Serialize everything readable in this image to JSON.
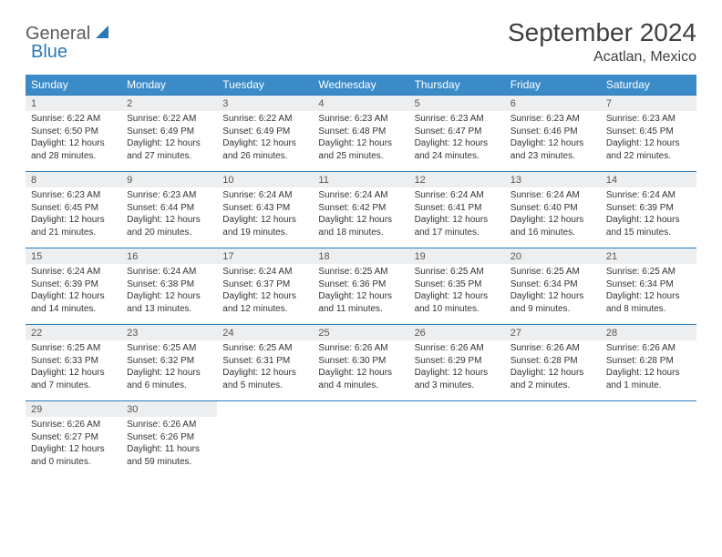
{
  "logo": {
    "general": "General",
    "blue": "Blue"
  },
  "title": "September 2024",
  "location": "Acatlan, Mexico",
  "colors": {
    "header_bg": "#3b8bc8",
    "header_text": "#ffffff",
    "daynum_bg": "#eceef0",
    "week_border": "#2a7ab8",
    "logo_gray": "#5c5c5c",
    "logo_blue": "#2a7ab8"
  },
  "days_of_week": [
    "Sunday",
    "Monday",
    "Tuesday",
    "Wednesday",
    "Thursday",
    "Friday",
    "Saturday"
  ],
  "weeks": [
    [
      {
        "num": "1",
        "sunrise": "Sunrise: 6:22 AM",
        "sunset": "Sunset: 6:50 PM",
        "daylight": "Daylight: 12 hours and 28 minutes."
      },
      {
        "num": "2",
        "sunrise": "Sunrise: 6:22 AM",
        "sunset": "Sunset: 6:49 PM",
        "daylight": "Daylight: 12 hours and 27 minutes."
      },
      {
        "num": "3",
        "sunrise": "Sunrise: 6:22 AM",
        "sunset": "Sunset: 6:49 PM",
        "daylight": "Daylight: 12 hours and 26 minutes."
      },
      {
        "num": "4",
        "sunrise": "Sunrise: 6:23 AM",
        "sunset": "Sunset: 6:48 PM",
        "daylight": "Daylight: 12 hours and 25 minutes."
      },
      {
        "num": "5",
        "sunrise": "Sunrise: 6:23 AM",
        "sunset": "Sunset: 6:47 PM",
        "daylight": "Daylight: 12 hours and 24 minutes."
      },
      {
        "num": "6",
        "sunrise": "Sunrise: 6:23 AM",
        "sunset": "Sunset: 6:46 PM",
        "daylight": "Daylight: 12 hours and 23 minutes."
      },
      {
        "num": "7",
        "sunrise": "Sunrise: 6:23 AM",
        "sunset": "Sunset: 6:45 PM",
        "daylight": "Daylight: 12 hours and 22 minutes."
      }
    ],
    [
      {
        "num": "8",
        "sunrise": "Sunrise: 6:23 AM",
        "sunset": "Sunset: 6:45 PM",
        "daylight": "Daylight: 12 hours and 21 minutes."
      },
      {
        "num": "9",
        "sunrise": "Sunrise: 6:23 AM",
        "sunset": "Sunset: 6:44 PM",
        "daylight": "Daylight: 12 hours and 20 minutes."
      },
      {
        "num": "10",
        "sunrise": "Sunrise: 6:24 AM",
        "sunset": "Sunset: 6:43 PM",
        "daylight": "Daylight: 12 hours and 19 minutes."
      },
      {
        "num": "11",
        "sunrise": "Sunrise: 6:24 AM",
        "sunset": "Sunset: 6:42 PM",
        "daylight": "Daylight: 12 hours and 18 minutes."
      },
      {
        "num": "12",
        "sunrise": "Sunrise: 6:24 AM",
        "sunset": "Sunset: 6:41 PM",
        "daylight": "Daylight: 12 hours and 17 minutes."
      },
      {
        "num": "13",
        "sunrise": "Sunrise: 6:24 AM",
        "sunset": "Sunset: 6:40 PM",
        "daylight": "Daylight: 12 hours and 16 minutes."
      },
      {
        "num": "14",
        "sunrise": "Sunrise: 6:24 AM",
        "sunset": "Sunset: 6:39 PM",
        "daylight": "Daylight: 12 hours and 15 minutes."
      }
    ],
    [
      {
        "num": "15",
        "sunrise": "Sunrise: 6:24 AM",
        "sunset": "Sunset: 6:39 PM",
        "daylight": "Daylight: 12 hours and 14 minutes."
      },
      {
        "num": "16",
        "sunrise": "Sunrise: 6:24 AM",
        "sunset": "Sunset: 6:38 PM",
        "daylight": "Daylight: 12 hours and 13 minutes."
      },
      {
        "num": "17",
        "sunrise": "Sunrise: 6:24 AM",
        "sunset": "Sunset: 6:37 PM",
        "daylight": "Daylight: 12 hours and 12 minutes."
      },
      {
        "num": "18",
        "sunrise": "Sunrise: 6:25 AM",
        "sunset": "Sunset: 6:36 PM",
        "daylight": "Daylight: 12 hours and 11 minutes."
      },
      {
        "num": "19",
        "sunrise": "Sunrise: 6:25 AM",
        "sunset": "Sunset: 6:35 PM",
        "daylight": "Daylight: 12 hours and 10 minutes."
      },
      {
        "num": "20",
        "sunrise": "Sunrise: 6:25 AM",
        "sunset": "Sunset: 6:34 PM",
        "daylight": "Daylight: 12 hours and 9 minutes."
      },
      {
        "num": "21",
        "sunrise": "Sunrise: 6:25 AM",
        "sunset": "Sunset: 6:34 PM",
        "daylight": "Daylight: 12 hours and 8 minutes."
      }
    ],
    [
      {
        "num": "22",
        "sunrise": "Sunrise: 6:25 AM",
        "sunset": "Sunset: 6:33 PM",
        "daylight": "Daylight: 12 hours and 7 minutes."
      },
      {
        "num": "23",
        "sunrise": "Sunrise: 6:25 AM",
        "sunset": "Sunset: 6:32 PM",
        "daylight": "Daylight: 12 hours and 6 minutes."
      },
      {
        "num": "24",
        "sunrise": "Sunrise: 6:25 AM",
        "sunset": "Sunset: 6:31 PM",
        "daylight": "Daylight: 12 hours and 5 minutes."
      },
      {
        "num": "25",
        "sunrise": "Sunrise: 6:26 AM",
        "sunset": "Sunset: 6:30 PM",
        "daylight": "Daylight: 12 hours and 4 minutes."
      },
      {
        "num": "26",
        "sunrise": "Sunrise: 6:26 AM",
        "sunset": "Sunset: 6:29 PM",
        "daylight": "Daylight: 12 hours and 3 minutes."
      },
      {
        "num": "27",
        "sunrise": "Sunrise: 6:26 AM",
        "sunset": "Sunset: 6:28 PM",
        "daylight": "Daylight: 12 hours and 2 minutes."
      },
      {
        "num": "28",
        "sunrise": "Sunrise: 6:26 AM",
        "sunset": "Sunset: 6:28 PM",
        "daylight": "Daylight: 12 hours and 1 minute."
      }
    ],
    [
      {
        "num": "29",
        "sunrise": "Sunrise: 6:26 AM",
        "sunset": "Sunset: 6:27 PM",
        "daylight": "Daylight: 12 hours and 0 minutes."
      },
      {
        "num": "30",
        "sunrise": "Sunrise: 6:26 AM",
        "sunset": "Sunset: 6:26 PM",
        "daylight": "Daylight: 11 hours and 59 minutes."
      },
      null,
      null,
      null,
      null,
      null
    ]
  ]
}
